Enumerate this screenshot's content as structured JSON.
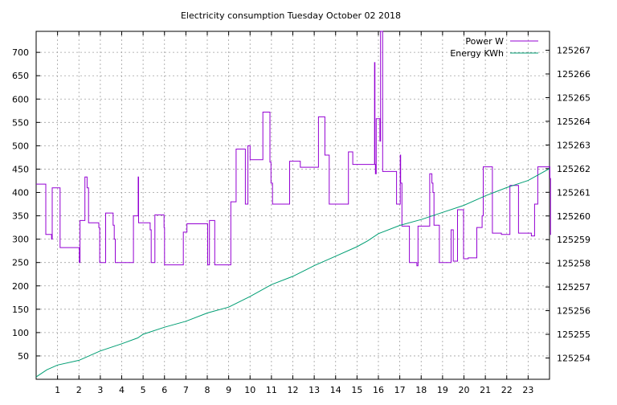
{
  "chart_data": {
    "type": "line",
    "title": "Electricity consumption Tuesday October 02 2018",
    "xlabel": "",
    "ylabel": "",
    "grid": true,
    "legend_position": "top-right",
    "x_ticks": [
      1,
      2,
      3,
      4,
      5,
      6,
      7,
      8,
      9,
      10,
      11,
      12,
      13,
      14,
      15,
      16,
      17,
      18,
      19,
      20,
      21,
      22,
      23
    ],
    "x_range": [
      0,
      24
    ],
    "y_left": {
      "range": [
        0,
        745
      ],
      "ticks": [
        50,
        100,
        150,
        200,
        250,
        300,
        350,
        400,
        450,
        500,
        550,
        600,
        650,
        700
      ]
    },
    "y_right": {
      "range": [
        125253.1,
        125267.8
      ],
      "ticks": [
        125254,
        125255,
        125256,
        125257,
        125258,
        125259,
        125260,
        125261,
        125262,
        125263,
        125264,
        125265,
        125266,
        125267
      ]
    },
    "series": [
      {
        "name": "Power W",
        "axis": "left",
        "color": "#9400d3",
        "step": true,
        "points": [
          [
            0,
            418
          ],
          [
            0.4,
            418
          ],
          [
            0.45,
            310
          ],
          [
            0.7,
            310
          ],
          [
            0.72,
            300
          ],
          [
            0.75,
            410
          ],
          [
            1.1,
            410
          ],
          [
            1.12,
            282
          ],
          [
            2.0,
            282
          ],
          [
            2.02,
            250
          ],
          [
            2.05,
            340
          ],
          [
            2.25,
            340
          ],
          [
            2.28,
            433
          ],
          [
            2.35,
            433
          ],
          [
            2.38,
            410
          ],
          [
            2.45,
            335
          ],
          [
            2.9,
            335
          ],
          [
            2.93,
            325
          ],
          [
            2.97,
            250
          ],
          [
            3.2,
            250
          ],
          [
            3.25,
            356
          ],
          [
            3.55,
            356
          ],
          [
            3.6,
            330
          ],
          [
            3.65,
            300
          ],
          [
            3.7,
            250
          ],
          [
            4.5,
            250
          ],
          [
            4.55,
            350
          ],
          [
            4.75,
            350
          ],
          [
            4.77,
            433
          ],
          [
            4.79,
            335
          ],
          [
            5.3,
            335
          ],
          [
            5.33,
            320
          ],
          [
            5.38,
            250
          ],
          [
            5.5,
            250
          ],
          [
            5.55,
            352
          ],
          [
            5.95,
            352
          ],
          [
            5.98,
            325
          ],
          [
            6.0,
            245
          ],
          [
            6.85,
            245
          ],
          [
            6.88,
            315
          ],
          [
            7.0,
            315
          ],
          [
            7.05,
            333
          ],
          [
            8.0,
            333
          ],
          [
            8.02,
            245
          ],
          [
            8.1,
            340
          ],
          [
            8.3,
            340
          ],
          [
            8.35,
            245
          ],
          [
            9.05,
            245
          ],
          [
            9.1,
            380
          ],
          [
            9.3,
            380
          ],
          [
            9.35,
            493
          ],
          [
            9.75,
            493
          ],
          [
            9.78,
            375
          ],
          [
            9.88,
            375
          ],
          [
            9.9,
            500
          ],
          [
            9.95,
            500
          ],
          [
            10.0,
            470
          ],
          [
            10.55,
            470
          ],
          [
            10.6,
            572
          ],
          [
            10.9,
            572
          ],
          [
            10.93,
            465
          ],
          [
            10.98,
            420
          ],
          [
            11.05,
            375
          ],
          [
            11.8,
            375
          ],
          [
            11.85,
            467
          ],
          [
            12.3,
            467
          ],
          [
            12.35,
            454
          ],
          [
            13.15,
            454
          ],
          [
            13.2,
            562
          ],
          [
            13.45,
            562
          ],
          [
            13.5,
            480
          ],
          [
            13.65,
            480
          ],
          [
            13.7,
            375
          ],
          [
            14.55,
            375
          ],
          [
            14.6,
            487
          ],
          [
            14.75,
            487
          ],
          [
            14.8,
            460
          ],
          [
            15.8,
            460
          ],
          [
            15.82,
            678
          ],
          [
            15.84,
            460
          ],
          [
            15.86,
            440
          ],
          [
            15.9,
            558
          ],
          [
            16.05,
            558
          ],
          [
            16.07,
            510
          ],
          [
            16.1,
            745
          ],
          [
            16.15,
            745
          ],
          [
            16.2,
            445
          ],
          [
            16.8,
            445
          ],
          [
            16.85,
            375
          ],
          [
            17.0,
            375
          ],
          [
            17.02,
            480
          ],
          [
            17.04,
            420
          ],
          [
            17.1,
            328
          ],
          [
            17.4,
            328
          ],
          [
            17.45,
            250
          ],
          [
            17.75,
            250
          ],
          [
            17.8,
            243
          ],
          [
            17.85,
            328
          ],
          [
            18.35,
            328
          ],
          [
            18.4,
            440
          ],
          [
            18.45,
            440
          ],
          [
            18.5,
            420
          ],
          [
            18.55,
            400
          ],
          [
            18.6,
            330
          ],
          [
            18.8,
            330
          ],
          [
            18.85,
            250
          ],
          [
            19.35,
            250
          ],
          [
            19.4,
            320
          ],
          [
            19.45,
            320
          ],
          [
            19.5,
            253
          ],
          [
            19.65,
            253
          ],
          [
            19.7,
            363
          ],
          [
            19.95,
            363
          ],
          [
            19.98,
            258
          ],
          [
            20.15,
            258
          ],
          [
            20.2,
            260
          ],
          [
            20.55,
            260
          ],
          [
            20.6,
            325
          ],
          [
            20.8,
            325
          ],
          [
            20.85,
            350
          ],
          [
            20.9,
            455
          ],
          [
            21.3,
            455
          ],
          [
            21.33,
            313
          ],
          [
            21.7,
            313
          ],
          [
            21.75,
            310
          ],
          [
            22.1,
            310
          ],
          [
            22.15,
            415
          ],
          [
            22.5,
            415
          ],
          [
            22.55,
            313
          ],
          [
            23.1,
            313
          ],
          [
            23.15,
            307
          ],
          [
            23.25,
            307
          ],
          [
            23.3,
            375
          ],
          [
            23.4,
            375
          ],
          [
            23.45,
            455
          ],
          [
            24.0,
            455
          ],
          [
            24.02,
            430
          ],
          [
            24.05,
            310
          ],
          [
            24.07,
            310
          ]
        ]
      },
      {
        "name": "Energy KWh",
        "axis": "right",
        "color": "#009e73",
        "step": false,
        "points": [
          [
            0,
            125253.2
          ],
          [
            0.5,
            125253.5
          ],
          [
            1.0,
            125253.7
          ],
          [
            2.0,
            125253.9
          ],
          [
            3.0,
            125254.3
          ],
          [
            4.0,
            125254.6
          ],
          [
            4.75,
            125254.85
          ],
          [
            5.0,
            125255.0
          ],
          [
            6.0,
            125255.3
          ],
          [
            7.0,
            125255.55
          ],
          [
            8.0,
            125255.9
          ],
          [
            9.0,
            125256.15
          ],
          [
            10.0,
            125256.6
          ],
          [
            11.0,
            125257.1
          ],
          [
            12.0,
            125257.45
          ],
          [
            13.0,
            125257.9
          ],
          [
            14.0,
            125258.3
          ],
          [
            15.0,
            125258.7
          ],
          [
            15.5,
            125258.95
          ],
          [
            16.0,
            125259.25
          ],
          [
            17.0,
            125259.6
          ],
          [
            18.0,
            125259.85
          ],
          [
            19.0,
            125260.15
          ],
          [
            20.0,
            125260.45
          ],
          [
            21.0,
            125260.85
          ],
          [
            22.0,
            125261.2
          ],
          [
            23.0,
            125261.5
          ],
          [
            24.0,
            125262.0
          ]
        ]
      }
    ]
  }
}
